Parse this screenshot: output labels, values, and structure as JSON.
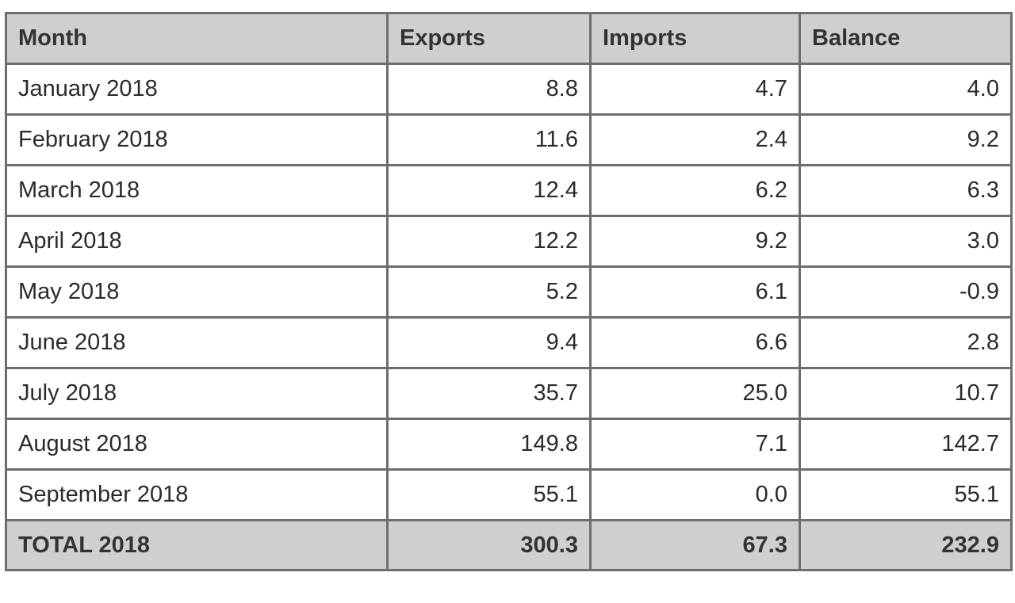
{
  "table": {
    "headers": [
      "Month",
      "Exports",
      "Imports",
      "Balance"
    ],
    "rows": [
      [
        "January 2018",
        "8.8",
        "4.7",
        "4.0"
      ],
      [
        "February 2018",
        "11.6",
        "2.4",
        "9.2"
      ],
      [
        "March 2018",
        "12.4",
        "6.2",
        "6.3"
      ],
      [
        "April 2018",
        "12.2",
        "9.2",
        "3.0"
      ],
      [
        "May 2018",
        "5.2",
        "6.1",
        "-0.9"
      ],
      [
        "June 2018",
        "9.4",
        "6.6",
        "2.8"
      ],
      [
        "July 2018",
        "35.7",
        "25.0",
        "10.7"
      ],
      [
        "August 2018",
        "149.8",
        "7.1",
        "142.7"
      ],
      [
        "September 2018",
        "55.1",
        "0.0",
        "55.1"
      ]
    ],
    "total": [
      "TOTAL 2018",
      "300.3",
      "67.3",
      "232.9"
    ]
  },
  "colors": {
    "header_background": "#cfcfcf",
    "border": "#6e6e6e",
    "text": "#2b2b2b"
  }
}
